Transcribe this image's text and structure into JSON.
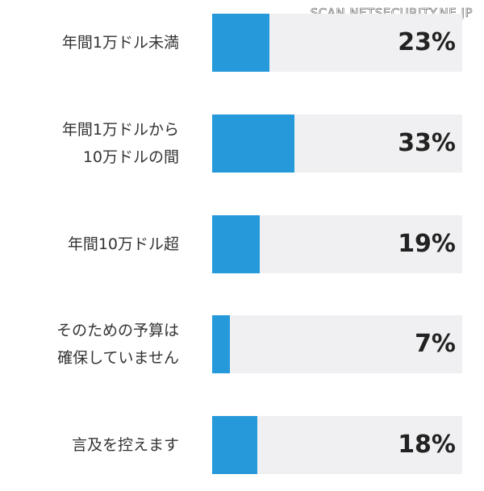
{
  "watermark": "SCAN.NETSECURITY.NE.JP",
  "colors": {
    "bar": "#2699db",
    "track": "#f0f0f2",
    "text": "#333333"
  },
  "chart_data": {
    "type": "bar",
    "orientation": "horizontal",
    "categories": [
      [
        "年間1万ドル未満"
      ],
      [
        "年間1万ドルから",
        "10万ドルの間"
      ],
      [
        "年間10万ドル超"
      ],
      [
        "そのための予算は",
        "確保していません"
      ],
      [
        "言及を控えます"
      ]
    ],
    "values": [
      23,
      33,
      19,
      7,
      18
    ],
    "value_labels": [
      "23%",
      "33%",
      "19%",
      "7%",
      "18%"
    ],
    "xlim": [
      0,
      100
    ],
    "unit": "%"
  }
}
